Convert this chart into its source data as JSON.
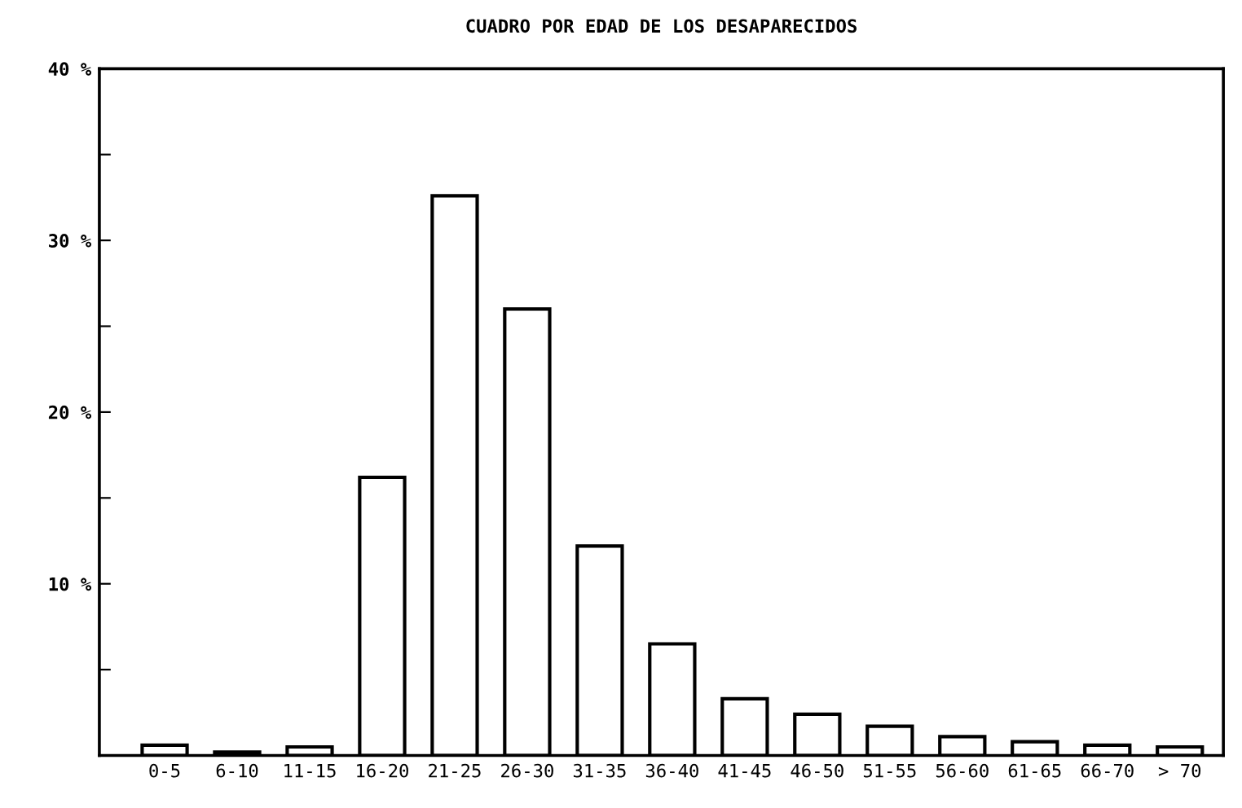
{
  "chart_data": {
    "type": "bar",
    "title": "CUADRO POR EDAD DE LOS DESAPARECIDOS",
    "categories": [
      "0-5",
      "6-10",
      "11-15",
      "16-20",
      "21-25",
      "26-30",
      "31-35",
      "36-40",
      "41-45",
      "46-50",
      "51-55",
      "56-60",
      "61-65",
      "66-70",
      "> 70"
    ],
    "values": [
      0.6,
      0.2,
      0.5,
      16.2,
      32.6,
      26.0,
      12.2,
      6.5,
      3.3,
      2.4,
      1.7,
      1.1,
      0.8,
      0.6,
      0.5
    ],
    "color": "#ffffff",
    "ylim": [
      0,
      40
    ],
    "yticks": [
      {
        "value": 0,
        "label": null
      },
      {
        "value": 5,
        "label": null
      },
      {
        "value": 10,
        "label": "10 %"
      },
      {
        "value": 15,
        "label": null
      },
      {
        "value": 20,
        "label": "20 %"
      },
      {
        "value": 25,
        "label": null
      },
      {
        "value": 30,
        "label": "30 %"
      },
      {
        "value": 35,
        "label": null
      },
      {
        "value": 40,
        "label": "40 %"
      }
    ],
    "grid": false,
    "legend": false
  }
}
